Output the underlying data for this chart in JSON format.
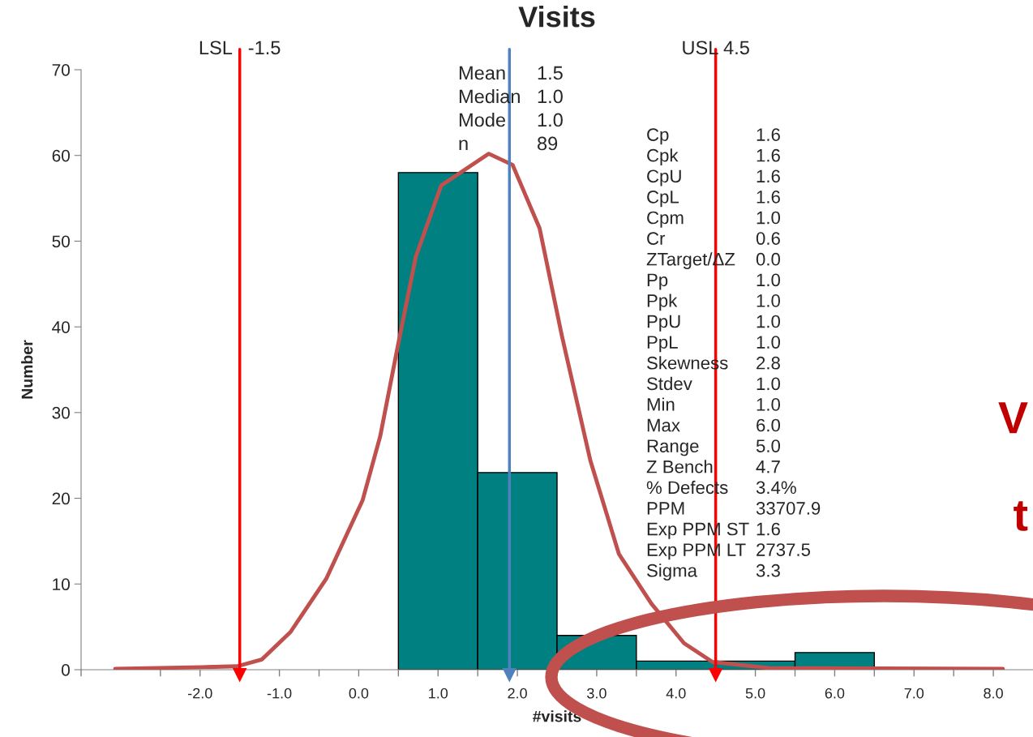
{
  "chart_data": {
    "type": "histogram",
    "title": "Visits",
    "xlabel": "#visits",
    "ylabel": "Number",
    "bins": [
      0.5,
      1.5,
      2.5,
      3.5,
      4.5,
      5.5,
      6.5
    ],
    "values": [
      58,
      23,
      4,
      1,
      1,
      2
    ],
    "color": "#008080",
    "series": [
      {
        "type": "line",
        "color": "#c0504d",
        "x": [
          -3.07,
          -1.98,
          -1.53,
          -1.22,
          -0.86,
          -0.41,
          0.05,
          0.27,
          0.5,
          0.72,
          1.04,
          1.64,
          1.94,
          2.28,
          2.56,
          2.92,
          3.28,
          3.69,
          4.1,
          4.46,
          5.17,
          8.12
        ],
        "values": [
          0.1,
          0.3,
          0.4,
          1.2,
          4.4,
          10.6,
          19.8,
          27.2,
          38.1,
          48.2,
          56.5,
          60.2,
          58.9,
          51.5,
          39,
          24.4,
          13.5,
          7.7,
          3.1,
          0.9,
          0.2,
          0.1
        ]
      }
    ],
    "xlim": [
      -3.5,
      8.5
    ],
    "xticks": [
      {
        "value": -3.5,
        "label": null
      },
      {
        "value": -2.5,
        "label": null
      },
      {
        "value": -1.5,
        "label": null
      },
      {
        "value": -0.5,
        "label": null
      },
      {
        "value": 0.5,
        "label": null
      },
      {
        "value": 1.5,
        "label": null
      },
      {
        "value": 2.5,
        "label": null
      },
      {
        "value": 3.5,
        "label": null
      },
      {
        "value": 4.5,
        "label": null
      },
      {
        "value": 5.5,
        "label": null
      },
      {
        "value": 6.5,
        "label": null
      },
      {
        "value": 7.5,
        "label": null
      },
      {
        "value": -2,
        "label": "-2.0"
      },
      {
        "value": -1,
        "label": "-1.0"
      },
      {
        "value": 0,
        "label": "0.0"
      },
      {
        "value": 1,
        "label": "1.0"
      },
      {
        "value": 2,
        "label": "2.0"
      },
      {
        "value": 3,
        "label": "3.0"
      },
      {
        "value": 4,
        "label": "4.0"
      },
      {
        "value": 5,
        "label": "5.0"
      },
      {
        "value": 6,
        "label": "6.0"
      },
      {
        "value": 7,
        "label": "7.0"
      },
      {
        "value": 8,
        "label": "8.0"
      }
    ],
    "ylim": [
      0,
      70
    ],
    "yticks": [
      0,
      10,
      20,
      30,
      40,
      50,
      60,
      70
    ],
    "grid": false,
    "legend": false,
    "ref_lines": [
      {
        "axis": "x",
        "value": -1.5,
        "label": "LSL   -1.5",
        "color": "#ff0000"
      },
      {
        "axis": "x",
        "value": 1.9,
        "color": "#4f81bd"
      },
      {
        "axis": "x",
        "value": 4.5,
        "label": "USL 4.5",
        "color": "#ff0000"
      }
    ],
    "annotations": [
      "Mean 1.5",
      "Median 1.0",
      "Mode 1.0",
      "n 89",
      "Cp 1.6",
      "Cpk 1.6",
      "CpU 1.6",
      "CpL 1.6",
      "Cpm 1.0",
      "Cr 0.6",
      "ZTarget/ΔZ 0.0",
      "Pp 1.0",
      "Ppk 1.0",
      "PpU 1.0",
      "PpL 1.0",
      "Skewness 2.8",
      "Stdev 1.0",
      "Min 1.0",
      "Max 6.0",
      "Range 5.0",
      "Z Bench 4.7",
      "% Defects 3.4%",
      "PPM 33707.9",
      "Exp PPM ST 1.6",
      "Exp PPM LT 2737.5",
      "Sigma 3.3",
      "V",
      "t"
    ]
  }
}
